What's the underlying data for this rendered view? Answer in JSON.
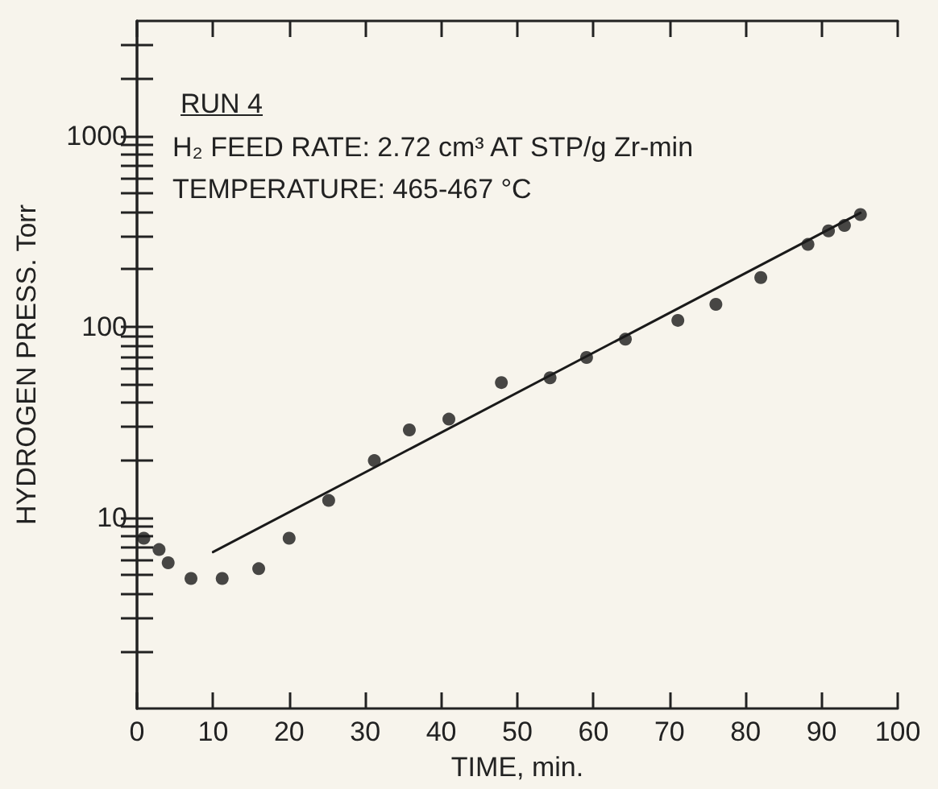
{
  "chart_data": {
    "type": "scatter",
    "xlabel": "TIME, min.",
    "ylabel": "HYDROGEN PRESS. Torr",
    "annotations": [
      "RUN 4",
      "H₂ FEED RATE: 2.72 cm³ AT STP/g Zr-min",
      "TEMPERATURE: 465-467 °C"
    ],
    "log": "y",
    "grid": false,
    "marker": "circle",
    "xlim": [
      0,
      100
    ],
    "xticks": [
      0,
      10,
      20,
      30,
      40,
      50,
      60,
      70,
      80,
      90,
      100
    ],
    "ylim": [
      1,
      4000
    ],
    "yticks": [
      {
        "value": 2,
        "label": null
      },
      {
        "value": 3,
        "label": null
      },
      {
        "value": 4,
        "label": null
      },
      {
        "value": 5,
        "label": null
      },
      {
        "value": 6,
        "label": null
      },
      {
        "value": 7,
        "label": null
      },
      {
        "value": 8,
        "label": null
      },
      {
        "value": 9,
        "label": null
      },
      10,
      {
        "value": 20,
        "label": null
      },
      {
        "value": 30,
        "label": null
      },
      {
        "value": 40,
        "label": null
      },
      {
        "value": 50,
        "label": null
      },
      {
        "value": 60,
        "label": null
      },
      {
        "value": 70,
        "label": null
      },
      {
        "value": 80,
        "label": null
      },
      {
        "value": 90,
        "label": null
      },
      100,
      {
        "value": 200,
        "label": null
      },
      {
        "value": 300,
        "label": null
      },
      {
        "value": 400,
        "label": null
      },
      {
        "value": 500,
        "label": null
      },
      {
        "value": 600,
        "label": null
      },
      {
        "value": 700,
        "label": null
      },
      {
        "value": 800,
        "label": null
      },
      {
        "value": 900,
        "label": null
      },
      1000,
      {
        "value": 2000,
        "label": null
      },
      {
        "value": 3000,
        "label": null
      }
    ],
    "series": [
      {
        "color": "#1a1a1a",
        "x": [
          0.9,
          2.9,
          4.1,
          7.1,
          11.2,
          16,
          20,
          25.2,
          31.2,
          35.8,
          41,
          47.9,
          54.3,
          59.1,
          64.2,
          71.1,
          76.1,
          82,
          88.2,
          90.9,
          93,
          95.1
        ],
        "values": [
          7.8,
          6.8,
          5.8,
          4.8,
          4.8,
          5.4,
          7.8,
          12.3,
          19.9,
          28.8,
          32.8,
          51,
          54,
          69,
          86,
          108,
          131,
          181,
          270,
          318,
          339,
          387
        ]
      },
      {
        "type": "line",
        "color": "#1a1a1a",
        "marker": "none",
        "line_style": "solid",
        "x": [
          10,
          95.1
        ],
        "values": [
          6.6,
          395
        ]
      }
    ]
  }
}
